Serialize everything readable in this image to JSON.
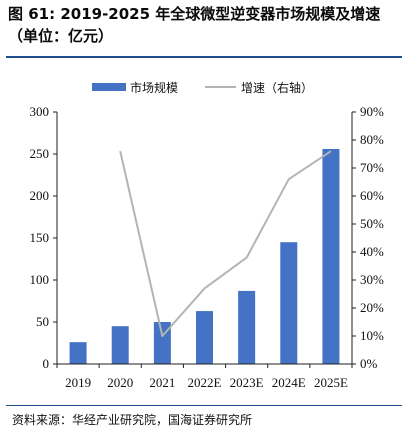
{
  "title": "图 61: 2019-2025 年全球微型逆变器市场规模及增速（单位：亿元）",
  "source": "资料来源：华经产业研究院，国海证券研究所",
  "chart_data": {
    "type": "bar",
    "categories": [
      "2019",
      "2020",
      "2021",
      "2022E",
      "2023E",
      "2024E",
      "2025E"
    ],
    "series": [
      {
        "name": "市场规模",
        "type": "bar",
        "axis": "left",
        "color": "#4472c4",
        "values": [
          26,
          45,
          50,
          63,
          87,
          145,
          256
        ]
      },
      {
        "name": "增速（右轴）",
        "type": "line",
        "axis": "right",
        "color": "#b4b4b4",
        "values": [
          null,
          76,
          10,
          27,
          38,
          66,
          76
        ]
      }
    ],
    "left_axis": {
      "min": 0,
      "max": 300,
      "ticks": [
        "0",
        "50",
        "100",
        "150",
        "200",
        "250",
        "300"
      ]
    },
    "right_axis": {
      "min": 0,
      "max": 90,
      "ticks": [
        "0%",
        "10%",
        "20%",
        "30%",
        "40%",
        "50%",
        "60%",
        "70%",
        "80%",
        "90%"
      ]
    },
    "legend_position": "top",
    "grid": false
  }
}
